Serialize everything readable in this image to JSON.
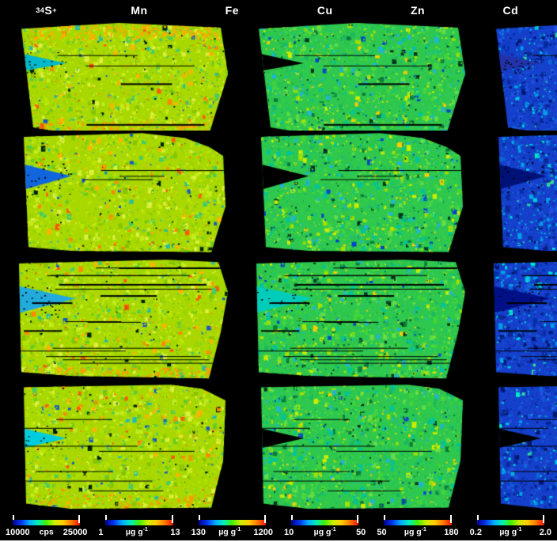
{
  "figure": {
    "background": "#000000",
    "bottom_border_color": "#ffffff",
    "text_color": "#ffffff"
  },
  "chart_data": {
    "type": "heatmap",
    "title": "",
    "description": "Grid of 24 LA-ICP-MS elemental distribution maps: 6 elements (columns) x 4 tissue sections (rows), each column sharing a rainbow intensity colorbar shown at bottom.",
    "legend_position": "bottom",
    "colorbar_gradient": [
      "#000088",
      "#0033ee",
      "#00aaff",
      "#00eebb",
      "#44ee00",
      "#ccee00",
      "#ffcc00",
      "#ff7700",
      "#ee1100"
    ],
    "columns": [
      {
        "id": "s34",
        "sup_prefix": "34",
        "label": "S",
        "sup_suffix": "+",
        "scale_min": "10000",
        "unit": "cps",
        "unit_sup": "",
        "scale_max": "25000",
        "palette": {
          "base": "#a8d800",
          "dots": [
            [
              "#b8e400",
              22
            ],
            [
              "#9cd400",
              18
            ],
            [
              "#c4ec1c",
              14
            ],
            [
              "#84c400",
              10
            ],
            [
              "#66cc22",
              8
            ],
            [
              "#44cc66",
              6
            ],
            [
              "#ffb300",
              6
            ],
            [
              "#ff8800",
              4
            ],
            [
              "#22bbaa",
              3
            ],
            [
              "#1155cc",
              2
            ],
            [
              "#ff5500",
              2
            ],
            [
              "#002200",
              3
            ],
            [
              "#ddf040",
              12
            ]
          ]
        }
      },
      {
        "id": "mn",
        "sup_prefix": "",
        "label": "Mn",
        "sup_suffix": "",
        "scale_min": "1",
        "unit": "µg g",
        "unit_sup": "-1",
        "scale_max": "13",
        "palette": {
          "base": "#2ec84e",
          "dots": [
            [
              "#2cc44c",
              20
            ],
            [
              "#44d438",
              16
            ],
            [
              "#1cb860",
              12
            ],
            [
              "#00c49c",
              12
            ],
            [
              "#22b4d4",
              7
            ],
            [
              "#a8e000",
              8
            ],
            [
              "#ccec00",
              5
            ],
            [
              "#ffcc00",
              3
            ],
            [
              "#0b7a3a",
              6
            ],
            [
              "#003322",
              4
            ],
            [
              "#0044cc",
              3
            ],
            [
              "#66dd44",
              14
            ]
          ]
        }
      },
      {
        "id": "fe",
        "sup_prefix": "",
        "label": "Fe",
        "sup_suffix": "",
        "scale_min": "130",
        "unit": "µg g",
        "unit_sup": "-1",
        "scale_max": "1200",
        "palette": {
          "base": "#1540cc",
          "dots": [
            [
              "#1638c0",
              20
            ],
            [
              "#2050e0",
              16
            ],
            [
              "#0a2898",
              14
            ],
            [
              "#0e66d8",
              10
            ],
            [
              "#00a0e8",
              9
            ],
            [
              "#00c8e0",
              6
            ],
            [
              "#001670",
              10
            ],
            [
              "#0030a8",
              10
            ],
            [
              "#33dd99",
              2
            ],
            [
              "#00e8c8",
              3
            ]
          ]
        }
      },
      {
        "id": "cu",
        "sup_prefix": "",
        "label": "Cu",
        "sup_suffix": "",
        "scale_min": "10",
        "unit": "µg g",
        "unit_sup": "-1",
        "scale_max": "50",
        "palette": {
          "base": "#3cc43c",
          "dots": [
            [
              "#38c038",
              18
            ],
            [
              "#52d42a",
              14
            ],
            [
              "#28b84c",
              12
            ],
            [
              "#88d800",
              8
            ],
            [
              "#c8e400",
              6
            ],
            [
              "#ffcc00",
              5
            ],
            [
              "#ff8800",
              5
            ],
            [
              "#ee2200",
              7
            ],
            [
              "#cc4400",
              3
            ],
            [
              "#00c0a0",
              6
            ],
            [
              "#1166cc",
              3
            ],
            [
              "#004400",
              3
            ],
            [
              "#66d830",
              10
            ]
          ]
        }
      },
      {
        "id": "zn",
        "sup_prefix": "",
        "label": "Zn",
        "sup_suffix": "",
        "scale_min": "50",
        "unit": "µg g",
        "unit_sup": "-1",
        "scale_max": "180",
        "palette": {
          "base": "#e0c400",
          "dots": [
            [
              "#e8cc00",
              16
            ],
            [
              "#f0b000",
              12
            ],
            [
              "#ff9900",
              10
            ],
            [
              "#ff6600",
              8
            ],
            [
              "#ee2200",
              10
            ],
            [
              "#cc1100",
              4
            ],
            [
              "#c8e000",
              10
            ],
            [
              "#98d800",
              8
            ],
            [
              "#44c444",
              5
            ],
            [
              "#00b894",
              3
            ],
            [
              "#885500",
              2
            ],
            [
              "#ffe000",
              12
            ]
          ]
        }
      },
      {
        "id": "cd",
        "sup_prefix": "",
        "label": "Cd",
        "sup_suffix": "",
        "scale_min": "0.2",
        "unit": "µg g",
        "unit_sup": "-1",
        "scale_max": "2.0",
        "edge_stroke": "#86c800",
        "palette": {
          "base": "#e81400",
          "dots": [
            [
              "#f01800",
              24
            ],
            [
              "#e00c00",
              18
            ],
            [
              "#cc0f00",
              10
            ],
            [
              "#ff3300",
              8
            ],
            [
              "#ff6600",
              3
            ],
            [
              "#ffcc00",
              4
            ],
            [
              "#a8cc00",
              4
            ],
            [
              "#44bb33",
              4
            ],
            [
              "#00a080",
              2
            ],
            [
              "#151515",
              7
            ],
            [
              "#330500",
              4
            ],
            [
              "#ff2200",
              12
            ]
          ]
        }
      }
    ],
    "rows": [
      {
        "id": "section-1",
        "shape": [
          [
            0.09,
            0.07
          ],
          [
            0.5,
            0.02
          ],
          [
            0.93,
            0.06
          ],
          [
            0.96,
            0.45
          ],
          [
            0.88,
            0.96
          ],
          [
            0.35,
            0.97
          ],
          [
            0.14,
            0.9
          ]
        ],
        "tear": [
          [
            0.05,
            0.26
          ],
          [
            0.28,
            0.36
          ],
          [
            0.05,
            0.44
          ]
        ],
        "tear_colors": [
          "#00b8cc",
          null,
          "#2233aa",
          "#1166cc",
          null,
          null
        ],
        "scratches": 4,
        "features": [
          {
            "cols": [
              0
            ],
            "rect": [
              0.12,
              0.03,
              0.8,
              0.12
            ],
            "color": "#ffaa00",
            "n": 260
          },
          {
            "cols": [
              0
            ],
            "rect": [
              0.15,
              0.85,
              0.72,
              0.1
            ],
            "color": "#ff9900",
            "n": 130
          },
          {
            "cols": [
              4
            ],
            "rect": [
              0.12,
              0.02,
              0.8,
              0.1
            ],
            "color": "#ee3300",
            "n": 170
          },
          {
            "cols": [
              5
            ],
            "rect": [
              0.12,
              0.45,
              0.75,
              0.5
            ],
            "color": "#99cc00",
            "n": 140
          }
        ]
      },
      {
        "id": "section-2",
        "shape": [
          [
            0.1,
            0.05
          ],
          [
            0.6,
            0.02
          ],
          [
            0.78,
            0.06
          ],
          [
            0.88,
            0.13
          ],
          [
            0.94,
            0.2
          ],
          [
            0.95,
            0.6
          ],
          [
            0.89,
            0.96
          ],
          [
            0.3,
            0.95
          ],
          [
            0.12,
            0.92
          ]
        ],
        "tear": [
          [
            0.04,
            0.24
          ],
          [
            0.3,
            0.36
          ],
          [
            0.04,
            0.5
          ]
        ],
        "tear_colors": [
          "#1166dd",
          null,
          "#001177",
          null,
          null,
          "#002266"
        ],
        "scratches": 3,
        "features": [
          {
            "cols": [
              4
            ],
            "rect": [
              0.12,
              0.06,
              0.78,
              0.85
            ],
            "color": "#ff6600",
            "n": 320
          },
          {
            "cols": [
              5
            ],
            "rect": [
              0.08,
              0.08,
              0.45,
              0.5
            ],
            "color": "#aacc00",
            "n": 240
          },
          {
            "cols": [
              3
            ],
            "rect": [
              0.1,
              0.05,
              0.8,
              0.9
            ],
            "color": "#ee3300",
            "n": 160
          }
        ]
      },
      {
        "id": "section-3",
        "shape": [
          [
            0.08,
            0.05
          ],
          [
            0.7,
            0.02
          ],
          [
            0.92,
            0.04
          ],
          [
            0.96,
            0.28
          ],
          [
            0.93,
            0.6
          ],
          [
            0.88,
            0.97
          ],
          [
            0.3,
            0.95
          ],
          [
            0.09,
            0.92
          ]
        ],
        "tear": [
          [
            0.05,
            0.22
          ],
          [
            0.32,
            0.33
          ],
          [
            0.05,
            0.46
          ]
        ],
        "tear_colors": [
          "#22aadd",
          "#00ccbb",
          "#001188",
          "#2266dd",
          "#00bb99",
          "#113355"
        ],
        "scratches": 16,
        "features": [
          {
            "cols": [
              4
            ],
            "rect": [
              0.15,
              0.02,
              0.72,
              0.14
            ],
            "color": "#ee3300",
            "n": 220
          },
          {
            "cols": [
              5
            ],
            "rect": [
              0.1,
              0.05,
              0.8,
              0.45
            ],
            "color": "#77bb00",
            "n": 230
          },
          {
            "cols": [
              0
            ],
            "rect": [
              0.1,
              0.88,
              0.8,
              0.08
            ],
            "color": "#ff9900",
            "n": 120
          },
          {
            "cols": [
              3
            ],
            "rect": [
              0.12,
              0.5,
              0.8,
              0.45
            ],
            "color": "#ee3300",
            "n": 140
          }
        ]
      },
      {
        "id": "section-4",
        "shape": [
          [
            0.1,
            0.04
          ],
          [
            0.72,
            0.02
          ],
          [
            0.85,
            0.05
          ],
          [
            0.95,
            0.14
          ],
          [
            0.94,
            0.6
          ],
          [
            0.89,
            0.96
          ],
          [
            0.3,
            0.97
          ],
          [
            0.11,
            0.93
          ]
        ],
        "tear": [
          [
            0.04,
            0.33
          ],
          [
            0.28,
            0.43
          ],
          [
            0.04,
            0.53
          ]
        ],
        "tear_colors": [
          "#00ccdd",
          null,
          null,
          null,
          "#2255cc",
          null
        ],
        "scratches": 7,
        "features": [
          {
            "cols": [
              0
            ],
            "rect": [
              0.12,
              0.86,
              0.78,
              0.09
            ],
            "color": "#ff9900",
            "n": 110
          },
          {
            "cols": [
              3
            ],
            "rect": [
              0.4,
              0.1,
              0.55,
              0.85
            ],
            "color": "#ee2200",
            "n": 200
          },
          {
            "cols": [
              4
            ],
            "rect": [
              0.12,
              0.5,
              0.8,
              0.45
            ],
            "color": "#ee4400",
            "n": 150
          },
          {
            "cols": [
              5
            ],
            "rect": [
              0.12,
              0.1,
              0.76,
              0.85
            ],
            "color": "#ffcc00",
            "n": 120
          }
        ]
      }
    ]
  }
}
